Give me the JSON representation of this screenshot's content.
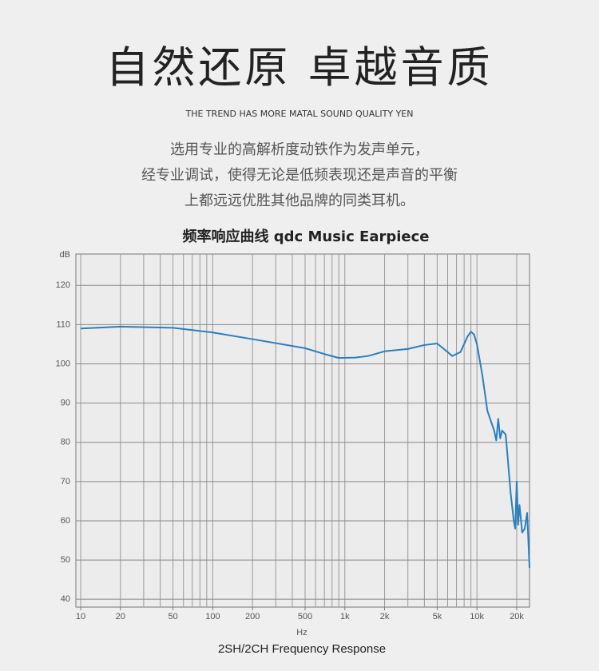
{
  "header": {
    "title": "自然还原  卓越音质",
    "subtitle": "THE TREND HAS MORE MATAL SOUND QUALITY YEN",
    "lines": [
      "选用专业的高解析度动铁作为发声单元，",
      "经专业调试，使得无论是低频表现还是声音的平衡",
      "上都远远优胜其他品牌的同类耳机。"
    ]
  },
  "chart_data": {
    "type": "line",
    "title": "频率响应曲线  qdc Music Earpiece",
    "caption": "2SH/2CH Frequency Response",
    "x_label": "Hz",
    "y_label": "dB",
    "xscale": "log",
    "grid": true,
    "xlim": [
      9.2,
      25000
    ],
    "ylim": [
      38,
      128
    ],
    "xticks": [
      10,
      20,
      50,
      100,
      200,
      500,
      {
        "value": 1000,
        "label": "1k"
      },
      {
        "value": 2000,
        "label": "2k"
      },
      {
        "value": 5000,
        "label": "5k"
      },
      {
        "value": 10000,
        "label": "10k"
      },
      {
        "value": 20000,
        "label": "20k"
      }
    ],
    "xminor": [
      10,
      20,
      30,
      40,
      50,
      60,
      70,
      80,
      90,
      100,
      200,
      300,
      400,
      500,
      600,
      700,
      800,
      900,
      1000,
      2000,
      3000,
      4000,
      5000,
      6000,
      7000,
      8000,
      9000,
      10000,
      20000
    ],
    "yticks": [
      40,
      50,
      60,
      70,
      80,
      90,
      100,
      110,
      120
    ],
    "x": [
      10,
      20,
      50,
      100,
      200,
      500,
      700,
      900,
      1200,
      1500,
      2000,
      3000,
      4000,
      5000,
      6000,
      6500,
      7500,
      8500,
      9000,
      9500,
      10000,
      11000,
      12000,
      13500,
      14000,
      14500,
      15000,
      15500,
      16500,
      17000,
      18000,
      19000,
      19500,
      20000,
      20500,
      21000,
      22000,
      23000,
      24000,
      25000
    ],
    "series": [
      {
        "color": "#2a7fbf",
        "values": [
          109,
          109.5,
          109.2,
          108,
          106.3,
          104,
          102.5,
          101.5,
          101.6,
          102,
          103.2,
          103.8,
          104.8,
          105.2,
          103,
          102,
          103,
          107,
          108.2,
          107.5,
          105,
          97,
          88,
          83,
          80.5,
          86,
          81,
          83,
          82,
          77,
          67,
          60,
          58,
          70,
          59,
          64,
          57,
          58,
          62,
          48
        ]
      }
    ]
  }
}
